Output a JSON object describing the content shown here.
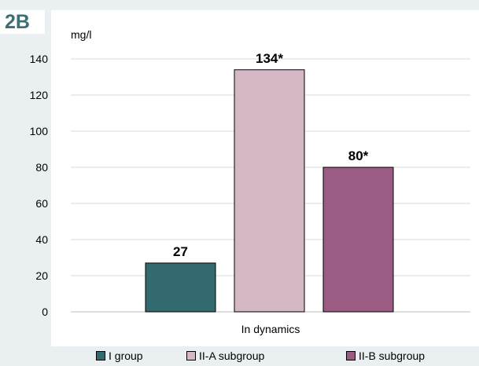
{
  "panel_label": "2B",
  "chart_data": {
    "type": "bar",
    "ylabel": "mg/l",
    "ylim": [
      0,
      140
    ],
    "yticks": [
      0,
      20,
      40,
      60,
      80,
      100,
      120,
      140
    ],
    "categories": [
      "In dynamics"
    ],
    "grid": true,
    "legend_placement": "bottom",
    "series": [
      {
        "name": "I group",
        "values": [
          27
        ],
        "label": "27",
        "color": "#336a70"
      },
      {
        "name": "II-A subgroup",
        "values": [
          134
        ],
        "label": "134*",
        "color": "#d6b7c5"
      },
      {
        "name": "II-B subgroup",
        "values": [
          80
        ],
        "label": "80*",
        "color": "#9a5c83"
      }
    ]
  }
}
